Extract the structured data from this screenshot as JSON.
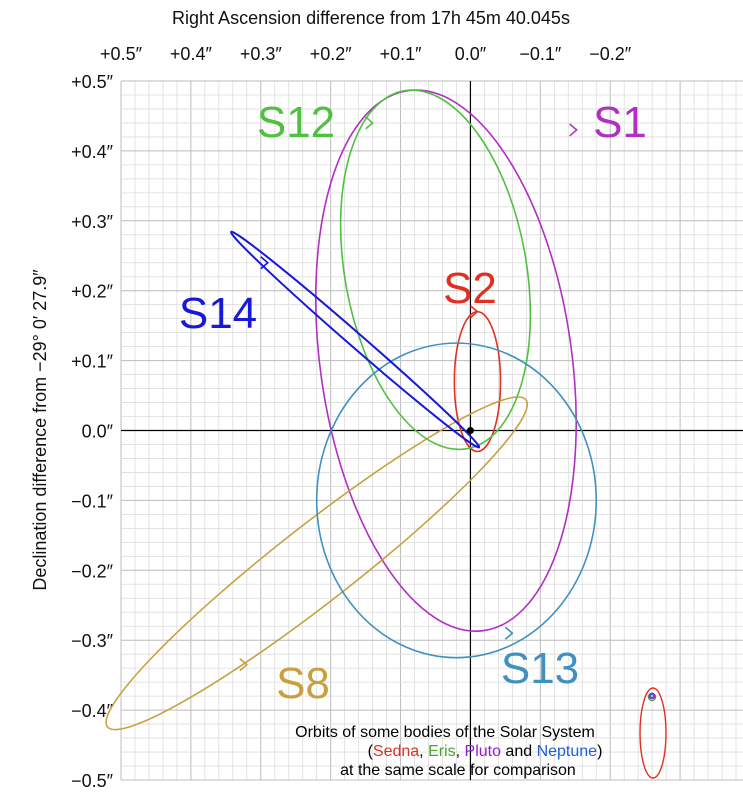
{
  "chart_data": {
    "type": "scatter",
    "title": "Right Ascension difference from 17h 45m 40.045s",
    "ylabel": "Declination difference from −29° 0′ 27.9″",
    "xlim": [
      0.5,
      -0.2
    ],
    "ylim": [
      -0.5,
      0.5
    ],
    "x_ticks": [
      "+0.5″",
      "+0.4″",
      "+0.3″",
      "+0.2″",
      "+0.1″",
      "0.0″",
      "−0.1″",
      "−0.2″"
    ],
    "x_tick_values": [
      0.5,
      0.4,
      0.3,
      0.2,
      0.1,
      0.0,
      -0.1,
      -0.2
    ],
    "y_ticks": [
      "+0.5″",
      "+0.4″",
      "+0.3″",
      "+0.2″",
      "+0.1″",
      "0.0″",
      "−0.1″",
      "−0.2″",
      "−0.3″",
      "−0.4″",
      "−0.5″"
    ],
    "y_tick_values": [
      0.5,
      0.4,
      0.3,
      0.2,
      0.1,
      0.0,
      -0.1,
      -0.2,
      -0.3,
      -0.4,
      -0.5
    ],
    "grid": true,
    "center_marker": [
      0.0,
      0.0
    ],
    "series": [
      {
        "name": "S1",
        "color": "#b030c0",
        "orbit": {
          "center": [
            0.035,
            0.1
          ],
          "semi_axes": [
            0.18,
            0.39
          ],
          "tilt_deg": -8
        },
        "arrow_at": [
          -0.152,
          0.43
        ]
      },
      {
        "name": "S2",
        "color": "#e03020",
        "orbit": {
          "center": [
            -0.01,
            0.07
          ],
          "semi_axes": [
            0.033,
            0.1
          ],
          "tilt_deg": 0
        },
        "arrow_at": [
          -0.01,
          0.17
        ]
      },
      {
        "name": "S8",
        "color": "#c8a040",
        "orbit": {
          "center": [
            0.22,
            -0.19
          ],
          "semi_axes": [
            0.38,
            0.055
          ],
          "tilt_deg": -38
        },
        "arrow_at": [
          0.32,
          -0.335
        ]
      },
      {
        "name": "S12",
        "color": "#50c040",
        "orbit": {
          "center": [
            0.05,
            0.23
          ],
          "semi_axes": [
            0.13,
            0.26
          ],
          "tilt_deg": -10
        },
        "arrow_at": [
          0.14,
          0.44
        ]
      },
      {
        "name": "S13",
        "color": "#4090c0",
        "orbit": {
          "center": [
            0.02,
            -0.1
          ],
          "semi_axes": [
            0.2,
            0.225
          ],
          "tilt_deg": 0
        },
        "arrow_at": [
          -0.06,
          -0.29
        ]
      },
      {
        "name": "S14",
        "color": "#1818d8",
        "orbit": {
          "center": [
            0.165,
            0.13
          ],
          "semi_axes": [
            0.235,
            0.01
          ],
          "tilt_deg": 41
        },
        "arrow_at": [
          0.29,
          0.24
        ]
      }
    ],
    "comparison": {
      "line1": "Orbits of some bodies of the Solar System",
      "open_paren": "(",
      "bodies": [
        {
          "name": "Sedna",
          "color": "#e03020"
        },
        {
          "name": "Eris",
          "color": "#50a030"
        },
        {
          "name": "Pluto",
          "color": "#9020d0"
        },
        {
          "name": "Neptune",
          "color": "#2060d0"
        }
      ],
      "sep1": ", ",
      "sep2": ", ",
      "sep3": " and ",
      "close_paren": ")",
      "line3": "at the same scale for comparison"
    }
  }
}
